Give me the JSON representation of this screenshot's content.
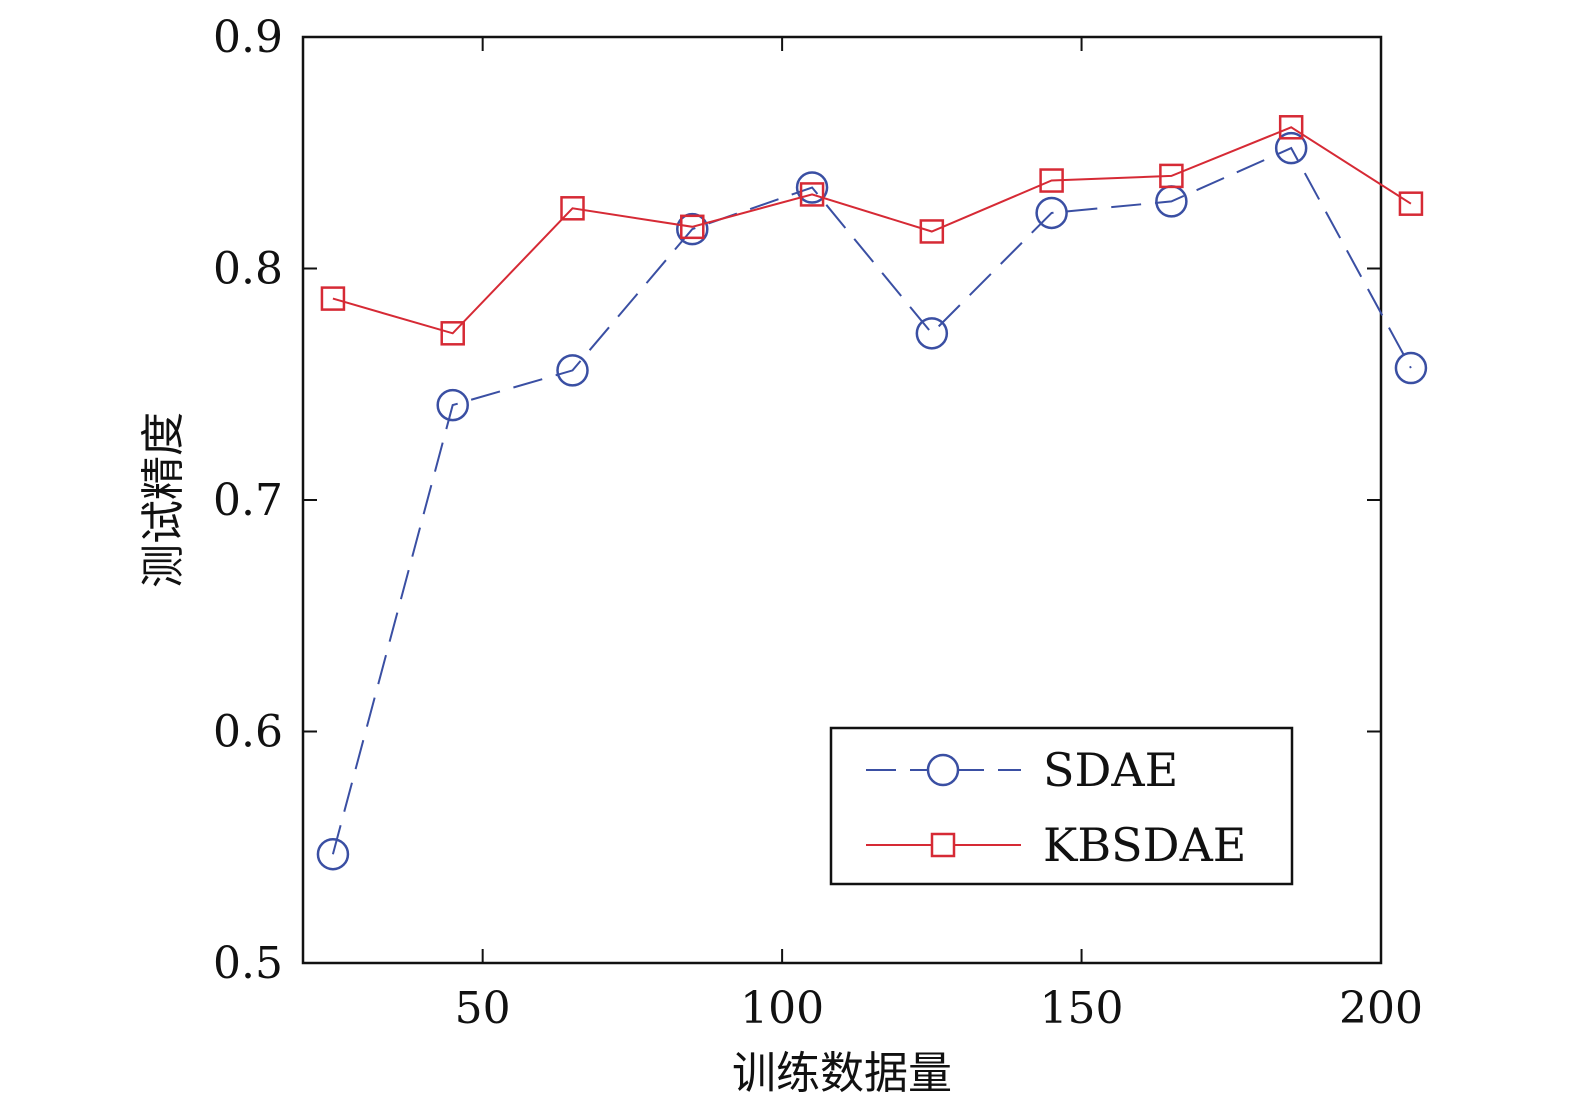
{
  "chart_data": {
    "type": "line",
    "title": "",
    "xlabel": "训练数据量",
    "ylabel": "测试精度",
    "xlim": [
      20,
      200
    ],
    "ylim": [
      0.5,
      0.9
    ],
    "xticks": [
      50,
      100,
      150,
      200
    ],
    "xtick_labels": [
      "50",
      "100",
      "150",
      "200"
    ],
    "yticks": [
      0.5,
      0.6,
      0.7,
      0.8,
      0.9
    ],
    "ytick_labels": [
      "0.5",
      "0.6",
      "0.7",
      "0.8",
      "0.9"
    ],
    "grid": false,
    "legend_position": "bottom-right",
    "x": [
      25,
      45,
      65,
      85,
      105,
      125,
      145,
      165,
      185,
      205
    ],
    "series": [
      {
        "name": "SDAE",
        "marker": "circle",
        "line_style": "dashed",
        "color": "#3a4fa3",
        "values": [
          0.547,
          0.741,
          0.756,
          0.817,
          0.835,
          0.772,
          0.824,
          0.829,
          0.852,
          0.757
        ]
      },
      {
        "name": "KBSDAE",
        "marker": "square",
        "line_style": "solid",
        "color": "#d62a35",
        "values": [
          0.787,
          0.772,
          0.826,
          0.818,
          0.832,
          0.816,
          0.838,
          0.84,
          0.861,
          0.828
        ]
      }
    ]
  }
}
